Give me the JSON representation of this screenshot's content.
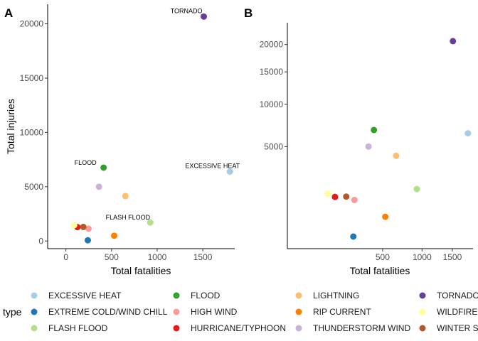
{
  "chart_data": [
    {
      "type": "scatter",
      "panel_tag": "A",
      "xlabel": "Total fatalities",
      "ylabel": "Total injuries",
      "xscale": "linear",
      "yscale": "linear",
      "xlim": [
        -200,
        1850
      ],
      "ylim": [
        -700,
        21800
      ],
      "xticks": [
        0,
        500,
        1000,
        1500
      ],
      "yticks": [
        0,
        5000,
        10000,
        15000,
        20000
      ],
      "grid": false,
      "points": [
        {
          "type": "EXCESSIVE HEAT",
          "x": 1797,
          "y": 6391,
          "label": "EXCESSIVE HEAT"
        },
        {
          "type": "EXTREME COLD/WIND CHILL",
          "x": 240,
          "y": 70,
          "label": ""
        },
        {
          "type": "FLASH FLOOD",
          "x": 924,
          "y": 1706,
          "label": "FLASH FLOOD"
        },
        {
          "type": "FLOOD",
          "x": 413,
          "y": 6759,
          "label": "FLOOD"
        },
        {
          "type": "HIGH WIND",
          "x": 248,
          "y": 1137,
          "label": ""
        },
        {
          "type": "HURRICANE/TYPHOON",
          "x": 125,
          "y": 1286,
          "label": ""
        },
        {
          "type": "LIGHTNING",
          "x": 652,
          "y": 4141,
          "label": ""
        },
        {
          "type": "RIP CURRENT",
          "x": 529,
          "y": 487,
          "label": ""
        },
        {
          "type": "THUNDERSTORM WIND",
          "x": 363,
          "y": 5000,
          "label": ""
        },
        {
          "type": "TORNADO",
          "x": 1511,
          "y": 20667,
          "label": "TORNADO"
        },
        {
          "type": "WILDFIRE",
          "x": 90,
          "y": 1450,
          "label": ""
        },
        {
          "type": "WINTER STORM",
          "x": 191,
          "y": 1300,
          "label": ""
        }
      ]
    },
    {
      "type": "scatter",
      "panel_tag": "B",
      "xlabel": "Total fatalities",
      "ylabel": "",
      "xscale": "sqrt",
      "yscale": "sqrt",
      "xlim": [
        0,
        1900
      ],
      "ylim": [
        0,
        24500
      ],
      "xticks": [
        500,
        1000,
        1500
      ],
      "yticks": [
        5000,
        10000,
        15000,
        20000
      ],
      "grid": false,
      "points": [
        {
          "type": "EXCESSIVE HEAT",
          "x": 1797,
          "y": 6391
        },
        {
          "type": "EXTREME COLD/WIND CHILL",
          "x": 240,
          "y": 70
        },
        {
          "type": "FLASH FLOOD",
          "x": 924,
          "y": 1706
        },
        {
          "type": "FLOOD",
          "x": 413,
          "y": 6759
        },
        {
          "type": "HIGH WIND",
          "x": 248,
          "y": 1137
        },
        {
          "type": "HURRICANE/TYPHOON",
          "x": 125,
          "y": 1286
        },
        {
          "type": "LIGHTNING",
          "x": 652,
          "y": 4141
        },
        {
          "type": "RIP CURRENT",
          "x": 529,
          "y": 487
        },
        {
          "type": "THUNDERSTORM WIND",
          "x": 363,
          "y": 5000
        },
        {
          "type": "TORNADO",
          "x": 1511,
          "y": 20667
        },
        {
          "type": "WILDFIRE",
          "x": 90,
          "y": 1450
        },
        {
          "type": "WINTER STORM",
          "x": 191,
          "y": 1300
        }
      ]
    }
  ],
  "legend": {
    "title": "type",
    "placement": "bottom",
    "entries": [
      {
        "name": "EXCESSIVE HEAT",
        "color": "#a6cee3"
      },
      {
        "name": "EXTREME COLD/WIND CHILL",
        "color": "#1f78b4"
      },
      {
        "name": "FLASH FLOOD",
        "color": "#b2df8a"
      },
      {
        "name": "FLOOD",
        "color": "#33a02c"
      },
      {
        "name": "HIGH WIND",
        "color": "#fb9a99"
      },
      {
        "name": "HURRICANE/TYPHOON",
        "color": "#e31a1c"
      },
      {
        "name": "LIGHTNING",
        "color": "#fdbf6f"
      },
      {
        "name": "RIP CURRENT",
        "color": "#ff7f00"
      },
      {
        "name": "THUNDERSTORM WIND",
        "color": "#cab2d6"
      },
      {
        "name": "TORNADO",
        "color": "#6a3d9a"
      },
      {
        "name": "WILDFIRE",
        "color": "#ffff99"
      },
      {
        "name": "WINTER STORM",
        "color": "#b15928"
      }
    ]
  }
}
